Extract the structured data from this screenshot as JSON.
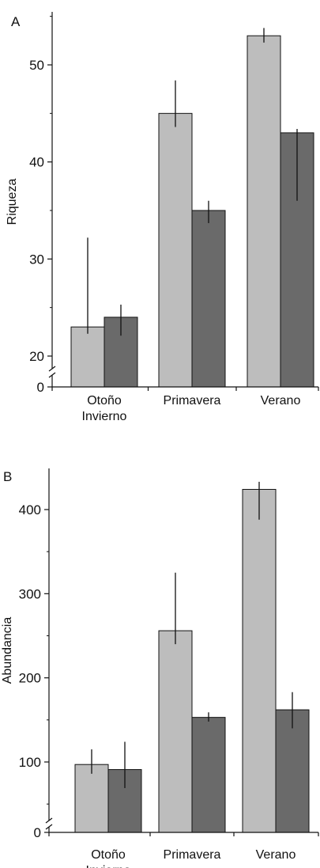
{
  "colors": {
    "series_light": "#bdbdbd",
    "series_dark": "#6a6a6a",
    "axis": "#111111",
    "error_bar": "#111111"
  },
  "chart_data": [
    {
      "type": "bar",
      "panel_label": "A",
      "ylabel": "Riqueza",
      "categories": [
        [
          "Otoño",
          "Invierno"
        ],
        [
          "Primavera"
        ],
        [
          "Verano"
        ]
      ],
      "axis_break": true,
      "break_value": 0,
      "ylim": [
        17,
        55
      ],
      "yticks": [
        20,
        30,
        40,
        50
      ],
      "ytick_labels": [
        "20",
        "30",
        "40",
        "50"
      ],
      "baseline_label": "0",
      "series": [
        {
          "color": "#bdbdbd",
          "values": [
            23,
            45,
            53
          ],
          "err_low": [
            22.3,
            43.6,
            52.3
          ],
          "err_high": [
            32.2,
            48.4,
            53.8
          ]
        },
        {
          "color": "#6a6a6a",
          "values": [
            24,
            35,
            43
          ],
          "err_low": [
            22.1,
            33.7,
            36.0
          ],
          "err_high": [
            25.3,
            36.0,
            43.4
          ]
        }
      ]
    },
    {
      "type": "bar",
      "panel_label": "B",
      "ylabel": "Abundancia",
      "categories": [
        [
          "Otoño",
          "Invierno"
        ],
        [
          "Primavera"
        ],
        [
          "Verano"
        ]
      ],
      "axis_break": true,
      "break_value": 0,
      "ylim": [
        15,
        450
      ],
      "yticks": [
        100,
        200,
        300,
        400
      ],
      "ytick_labels": [
        "100",
        "200",
        "300",
        "400"
      ],
      "baseline_label": "0",
      "series": [
        {
          "color": "#bdbdbd",
          "values": [
            97,
            256,
            424
          ],
          "err_low": [
            86,
            240,
            388
          ],
          "err_high": [
            115,
            325,
            433
          ]
        },
        {
          "color": "#6a6a6a",
          "values": [
            91,
            153,
            162
          ],
          "err_low": [
            69,
            148,
            140
          ],
          "err_high": [
            124,
            159,
            183
          ]
        }
      ]
    }
  ]
}
